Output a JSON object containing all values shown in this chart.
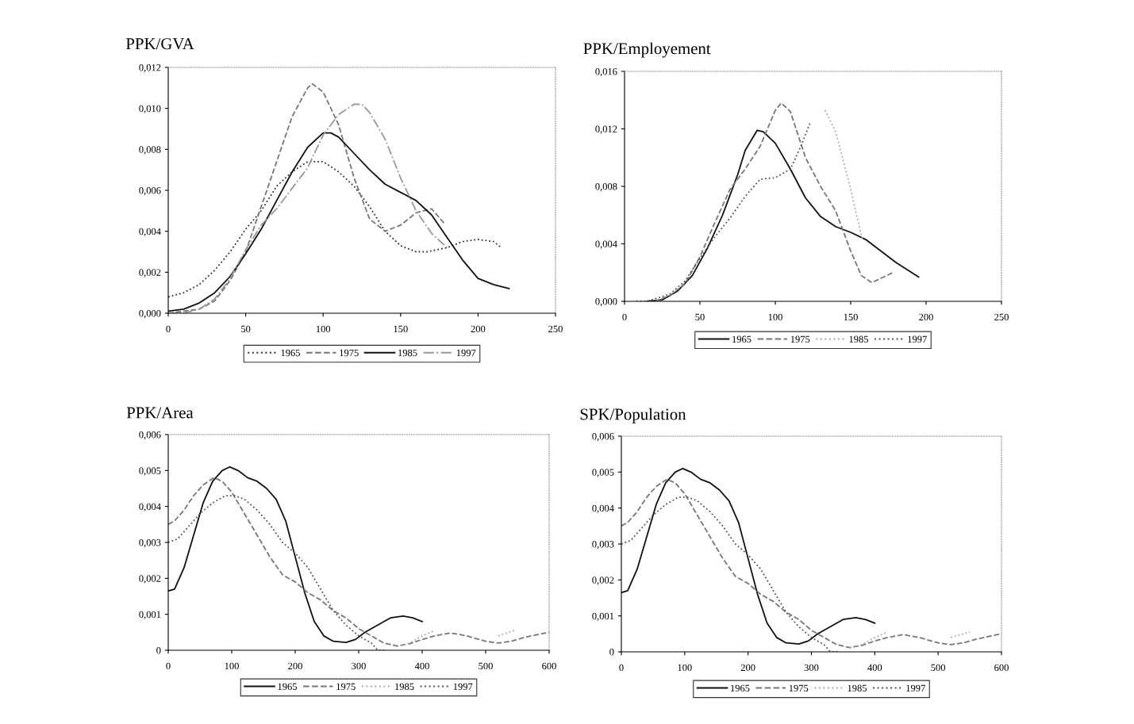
{
  "chart_data": [
    {
      "type": "line",
      "title": "PPK/GVA",
      "xlim": [
        0,
        250
      ],
      "xticks": [
        0,
        50,
        100,
        150,
        200,
        250
      ],
      "ylim": [
        0,
        0.012
      ],
      "yticks": [
        {
          "value": 0,
          "label": "0,000"
        },
        {
          "value": 0.002,
          "label": "0,002"
        },
        {
          "value": 0.004,
          "label": "0,004"
        },
        {
          "value": 0.006,
          "label": "0,006"
        },
        {
          "value": 0.008,
          "label": "0,008"
        },
        {
          "value": 0.01,
          "label": "0,010"
        },
        {
          "value": 0.012,
          "label": "0,012"
        }
      ],
      "grid": false,
      "legend": "bottom",
      "marker": "none",
      "series": [
        {
          "name": "1965",
          "color": "#333333",
          "line_style": "dotted",
          "x": [
            0,
            10,
            20,
            30,
            40,
            50,
            60,
            70,
            80,
            90,
            100,
            110,
            120,
            130,
            140,
            150,
            160,
            167,
            180,
            190,
            200,
            210,
            215
          ],
          "values": [
            0.0008,
            0.001,
            0.0014,
            0.0021,
            0.003,
            0.0041,
            0.005,
            0.0062,
            0.0069,
            0.0074,
            0.0074,
            0.0069,
            0.0062,
            0.0052,
            0.004,
            0.0033,
            0.003,
            0.003,
            0.0032,
            0.0035,
            0.0036,
            0.0035,
            0.0032
          ]
        },
        {
          "name": "1975",
          "color": "#777777",
          "line_style": "dashed",
          "x": [
            0,
            10,
            20,
            30,
            40,
            50,
            60,
            70,
            80,
            90,
            93,
            100,
            110,
            120,
            130,
            140,
            150,
            160,
            170,
            178
          ],
          "values": [
            0.0,
            0.0001,
            0.0002,
            0.0006,
            0.0016,
            0.003,
            0.0052,
            0.0074,
            0.0096,
            0.011,
            0.0112,
            0.0108,
            0.0092,
            0.0066,
            0.0046,
            0.004,
            0.0043,
            0.0049,
            0.0051,
            0.0044
          ]
        },
        {
          "name": "1985",
          "color": "#111111",
          "line_style": "solid",
          "x": [
            0,
            5,
            10,
            20,
            30,
            40,
            50,
            60,
            70,
            80,
            90,
            100,
            105,
            110,
            120,
            130,
            140,
            150,
            160,
            170,
            180,
            190,
            200,
            210,
            220
          ],
          "values": [
            0.0001,
            0.00015,
            0.0002,
            0.0005,
            0.001,
            0.0018,
            0.0029,
            0.0041,
            0.0055,
            0.0069,
            0.0081,
            0.0088,
            0.0088,
            0.0086,
            0.0078,
            0.007,
            0.0063,
            0.0059,
            0.0055,
            0.0048,
            0.0037,
            0.0026,
            0.0017,
            0.0014,
            0.0012
          ]
        },
        {
          "name": "1997",
          "color": "#999999",
          "line_style": "dashdot",
          "x": [
            0,
            10,
            20,
            30,
            40,
            50,
            60,
            70,
            80,
            90,
            100,
            110,
            120,
            125,
            130,
            140,
            150,
            160,
            170,
            180
          ],
          "values": [
            0.0,
            0.0,
            0.0002,
            0.0007,
            0.0017,
            0.0031,
            0.0043,
            0.0051,
            0.0061,
            0.0071,
            0.0087,
            0.0097,
            0.0102,
            0.0102,
            0.0098,
            0.0085,
            0.0066,
            0.005,
            0.0039,
            0.0032
          ]
        }
      ]
    },
    {
      "type": "line",
      "title": "PPK/Employement",
      "xlim": [
        0,
        250
      ],
      "xticks": [
        0,
        50,
        100,
        150,
        200,
        250
      ],
      "ylim": [
        0,
        0.016
      ],
      "yticks": [
        {
          "value": 0,
          "label": "0,000"
        },
        {
          "value": 0.004,
          "label": "0,004"
        },
        {
          "value": 0.008,
          "label": "0,008"
        },
        {
          "value": 0.012,
          "label": "0,012"
        },
        {
          "value": 0.016,
          "label": "0,016"
        }
      ],
      "grid": false,
      "legend": "bottom",
      "marker": "none",
      "series": [
        {
          "name": "1965",
          "color": "#111111",
          "line_style": "solid",
          "x": [
            15,
            25,
            35,
            45,
            55,
            65,
            75,
            80,
            88,
            92,
            100,
            110,
            120,
            130,
            140,
            150,
            160,
            170,
            180,
            195
          ],
          "values": [
            0.0,
            0.0001,
            0.0007,
            0.0018,
            0.0037,
            0.006,
            0.0088,
            0.0105,
            0.0119,
            0.0118,
            0.011,
            0.0092,
            0.0072,
            0.0059,
            0.0052,
            0.0048,
            0.0043,
            0.0035,
            0.0027,
            0.0017
          ]
        },
        {
          "name": "1975",
          "color": "#777777",
          "line_style": "dashed",
          "x": [
            20,
            30,
            40,
            50,
            60,
            70,
            80,
            90,
            100,
            104,
            110,
            120,
            130,
            140,
            150,
            157,
            164,
            170,
            178
          ],
          "values": [
            0.0,
            0.0004,
            0.0012,
            0.0031,
            0.0055,
            0.0078,
            0.0092,
            0.0108,
            0.0133,
            0.0138,
            0.0132,
            0.01,
            0.008,
            0.0063,
            0.0035,
            0.0018,
            0.0013,
            0.0016,
            0.002
          ]
        },
        {
          "name": "1985",
          "color": "#aaaaaa",
          "line_style": "dotted",
          "x": [
            133,
            140,
            145,
            150,
            155,
            158
          ],
          "values": [
            0.0133,
            0.0118,
            0.0098,
            0.0078,
            0.0055,
            0.0042
          ]
        },
        {
          "name": "1997",
          "color": "#555555",
          "line_style": "dotted",
          "x": [
            8,
            15,
            30,
            40,
            50,
            60,
            70,
            80,
            90,
            100,
            110,
            117,
            123
          ],
          "values": [
            0.0,
            0.0,
            0.0005,
            0.0014,
            0.003,
            0.0045,
            0.0058,
            0.0073,
            0.0085,
            0.0086,
            0.0092,
            0.0108,
            0.0124
          ]
        }
      ]
    },
    {
      "type": "line",
      "title": "PPK/Area",
      "xlim": [
        0,
        600
      ],
      "xticks": [
        0,
        100,
        200,
        300,
        400,
        500,
        600
      ],
      "ylim": [
        0,
        0.006
      ],
      "yticks": [
        0,
        {
          "value": 0.001,
          "label": "0,001"
        },
        {
          "value": 0.002,
          "label": "0,002"
        },
        {
          "value": 0.003,
          "label": "0,003"
        },
        {
          "value": 0.004,
          "label": "0,004"
        },
        {
          "value": 0.005,
          "label": "0,005"
        },
        {
          "value": 0.006,
          "label": "0,006"
        }
      ],
      "grid": false,
      "legend": "bottom",
      "marker": "none",
      "series": [
        {
          "name": "1965",
          "color": "#111111",
          "line_style": "solid",
          "x": [
            0,
            10,
            25,
            40,
            55,
            70,
            85,
            97,
            110,
            125,
            140,
            155,
            170,
            185,
            200,
            215,
            230,
            245,
            260,
            280,
            295,
            310,
            330,
            350,
            370,
            385,
            400
          ],
          "values": [
            0.00165,
            0.0017,
            0.0023,
            0.0032,
            0.0041,
            0.0047,
            0.005,
            0.0051,
            0.005,
            0.0048,
            0.0047,
            0.0045,
            0.0042,
            0.0036,
            0.0026,
            0.0016,
            0.0008,
            0.0004,
            0.00025,
            0.00022,
            0.0003,
            0.0005,
            0.0007,
            0.0009,
            0.00095,
            0.0009,
            0.0008
          ]
        },
        {
          "name": "1975",
          "color": "#777777",
          "line_style": "dashed",
          "x": [
            0,
            10,
            25,
            40,
            55,
            72,
            85,
            100,
            120,
            140,
            160,
            180,
            200,
            220,
            240,
            260,
            280,
            300,
            320,
            340,
            360,
            380,
            400,
            420,
            445,
            470,
            500,
            520,
            540,
            560,
            580,
            600
          ],
          "values": [
            0.0035,
            0.0036,
            0.0039,
            0.0043,
            0.0046,
            0.0048,
            0.0047,
            0.0044,
            0.0038,
            0.0032,
            0.0026,
            0.0021,
            0.0019,
            0.0016,
            0.0014,
            0.0011,
            0.0009,
            0.0006,
            0.0004,
            0.0002,
            0.00012,
            0.00018,
            0.0003,
            0.0004,
            0.00048,
            0.0004,
            0.00025,
            0.0002,
            0.00025,
            0.00035,
            0.00043,
            0.0005
          ]
        },
        {
          "name": "1985",
          "color": "#aaaaaa",
          "line_style": "dotted",
          "x": [
            360,
            380,
            400,
            420,
            470,
            520,
            545
          ],
          "values": [
            0.0001,
            0.0002,
            0.0004,
            0.00055,
            null,
            0.0004,
            0.00055
          ]
        },
        {
          "name": "1997",
          "color": "#555555",
          "line_style": "dotted",
          "x": [
            0,
            15,
            30,
            50,
            70,
            90,
            105,
            120,
            140,
            160,
            180,
            200,
            220,
            240,
            260,
            280,
            300,
            320,
            330,
            340
          ],
          "values": [
            0.003,
            0.0031,
            0.0034,
            0.0038,
            0.0041,
            0.0043,
            0.0043,
            0.0042,
            0.0039,
            0.0035,
            0.003,
            0.0027,
            0.0023,
            0.0017,
            0.0011,
            0.0007,
            0.0004,
            0.0002,
            0.0,
            0.0
          ]
        }
      ]
    },
    {
      "type": "line",
      "title": "SPK/Population",
      "xlim": [
        0,
        600
      ],
      "xticks": [
        0,
        100,
        200,
        300,
        400,
        500,
        600
      ],
      "ylim": [
        0,
        0.006
      ],
      "yticks": [
        0,
        {
          "value": 0.001,
          "label": "0,001"
        },
        {
          "value": 0.002,
          "label": "0,002"
        },
        {
          "value": 0.003,
          "label": "0,003"
        },
        {
          "value": 0.004,
          "label": "0,004"
        },
        {
          "value": 0.005,
          "label": "0,005"
        },
        {
          "value": 0.006,
          "label": "0,006"
        }
      ],
      "grid": false,
      "legend": "bottom",
      "marker": "none",
      "series": [
        {
          "name": "1965",
          "color": "#111111",
          "line_style": "solid",
          "x": [
            0,
            10,
            25,
            40,
            55,
            70,
            85,
            97,
            110,
            125,
            140,
            155,
            170,
            185,
            200,
            215,
            230,
            245,
            260,
            280,
            295,
            310,
            330,
            350,
            370,
            385,
            400
          ],
          "values": [
            0.00165,
            0.0017,
            0.0023,
            0.0032,
            0.0041,
            0.0047,
            0.005,
            0.0051,
            0.005,
            0.0048,
            0.0047,
            0.0045,
            0.0042,
            0.0036,
            0.0026,
            0.0016,
            0.0008,
            0.0004,
            0.00025,
            0.00022,
            0.0003,
            0.0005,
            0.0007,
            0.0009,
            0.00095,
            0.0009,
            0.0008
          ]
        },
        {
          "name": "1975",
          "color": "#777777",
          "line_style": "dashed",
          "x": [
            0,
            10,
            25,
            40,
            55,
            72,
            85,
            100,
            120,
            140,
            160,
            180,
            200,
            220,
            240,
            260,
            280,
            300,
            320,
            340,
            360,
            380,
            400,
            420,
            445,
            470,
            500,
            520,
            540,
            560,
            580,
            600
          ],
          "values": [
            0.0035,
            0.0036,
            0.0039,
            0.0043,
            0.0046,
            0.0048,
            0.0047,
            0.0044,
            0.0038,
            0.0032,
            0.0026,
            0.0021,
            0.0019,
            0.0016,
            0.0014,
            0.0011,
            0.0009,
            0.0006,
            0.0004,
            0.0002,
            0.00012,
            0.00018,
            0.0003,
            0.0004,
            0.00048,
            0.0004,
            0.00025,
            0.0002,
            0.00025,
            0.00035,
            0.00043,
            0.0005
          ]
        },
        {
          "name": "1985",
          "color": "#aaaaaa",
          "line_style": "dotted",
          "x": [
            360,
            380,
            400,
            420,
            470,
            520,
            550
          ],
          "values": [
            0.0001,
            0.0002,
            0.0004,
            0.00055,
            null,
            0.0004,
            0.00055
          ]
        },
        {
          "name": "1997",
          "color": "#555555",
          "line_style": "dotted",
          "x": [
            0,
            15,
            30,
            50,
            70,
            90,
            105,
            120,
            140,
            160,
            180,
            200,
            220,
            240,
            260,
            280,
            300,
            320,
            330,
            345
          ],
          "values": [
            0.003,
            0.0031,
            0.0034,
            0.0038,
            0.0041,
            0.0043,
            0.0043,
            0.0042,
            0.0039,
            0.0035,
            0.003,
            0.0027,
            0.0023,
            0.0017,
            0.0011,
            0.0007,
            0.0004,
            0.0002,
            0.0,
            0.0
          ]
        }
      ]
    }
  ]
}
